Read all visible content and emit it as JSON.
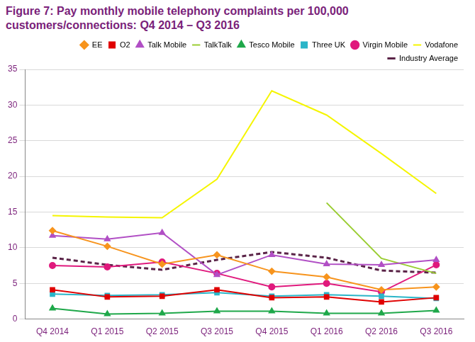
{
  "chart_data": {
    "type": "line",
    "title": "Figure 7: Pay monthly mobile telephony complaints per 100,000 customers/connections: Q4 2014 – Q3 2016",
    "categories": [
      "Q4 2014",
      "Q1 2015",
      "Q2 2015",
      "Q3 2015",
      "Q4 2015",
      "Q1 2016",
      "Q2 2016",
      "Q3 2016"
    ],
    "series": [
      {
        "name": "EE",
        "color": "#f7941d",
        "marker": "diamond",
        "values": [
          12.4,
          10.2,
          7.7,
          9.0,
          6.7,
          5.9,
          4.1,
          4.5
        ]
      },
      {
        "name": "O2",
        "color": "#e00000",
        "marker": "square",
        "values": [
          4.1,
          3.1,
          3.2,
          4.1,
          3.0,
          3.1,
          2.4,
          3.0
        ]
      },
      {
        "name": "Talk Mobile",
        "color": "#b14fc5",
        "marker": "triangle",
        "values": [
          11.7,
          11.2,
          12.1,
          6.2,
          9.0,
          7.7,
          7.6,
          8.3
        ]
      },
      {
        "name": "TalkTalk",
        "color": "#9acd32",
        "marker": "none",
        "values": [
          null,
          null,
          null,
          null,
          null,
          16.3,
          8.5,
          6.4
        ]
      },
      {
        "name": "Tesco Mobile",
        "color": "#1fa84a",
        "marker": "triangle",
        "values": [
          1.5,
          0.7,
          0.8,
          1.1,
          1.1,
          0.8,
          0.8,
          1.2
        ]
      },
      {
        "name": "Three UK",
        "color": "#2bb5c8",
        "marker": "square",
        "values": [
          3.5,
          3.3,
          3.4,
          3.7,
          3.2,
          3.4,
          3.2,
          2.9
        ]
      },
      {
        "name": "Virgin Mobile",
        "color": "#e0197d",
        "marker": "circle",
        "values": [
          7.5,
          7.3,
          8.0,
          6.4,
          4.5,
          5.0,
          3.8,
          7.6
        ]
      },
      {
        "name": "Vodafone",
        "color": "#f5f500",
        "marker": "none",
        "values": [
          14.5,
          14.3,
          14.2,
          19.6,
          32.0,
          28.6,
          23.2,
          17.6
        ]
      },
      {
        "name": "Industry Average",
        "color": "#5a2347",
        "marker": "none",
        "line_style": "dashed",
        "values": [
          8.6,
          7.6,
          6.9,
          8.3,
          9.4,
          8.6,
          6.8,
          6.5
        ]
      }
    ],
    "ylim": [
      0,
      35
    ],
    "yticks": [
      0,
      5,
      10,
      15,
      20,
      25,
      30,
      35
    ],
    "grid": true,
    "legend": "top"
  }
}
